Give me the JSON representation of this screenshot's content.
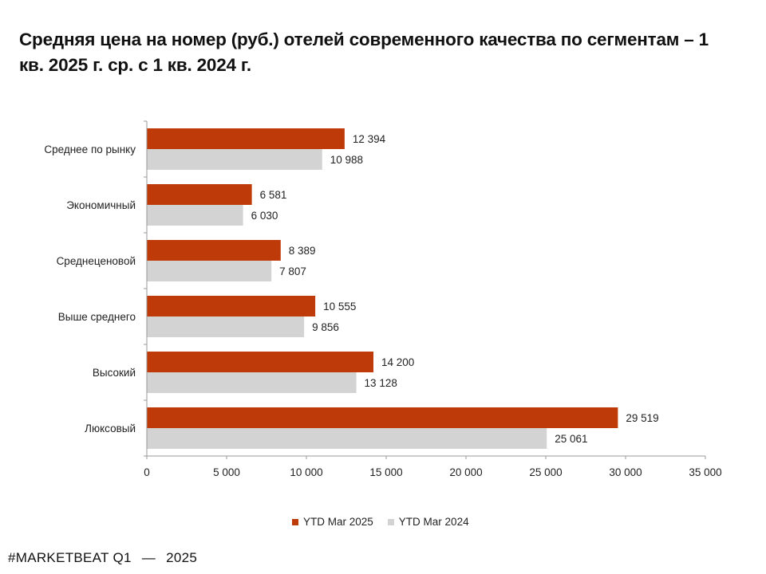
{
  "chart_data": {
    "type": "bar",
    "orientation": "horizontal",
    "title": "Средняя цена на номер (руб.) отелей современного качества по сегментам – 1 кв. 2025 г. ср. с 1 кв. 2024 г.",
    "categories": [
      "Среднее по рынку",
      "Экономичный",
      "Среднеценовой",
      "Выше среднего",
      "Высокий",
      "Люксовый"
    ],
    "series": [
      {
        "name": "YTD Mar 2025",
        "color": "#BE3A08",
        "values": [
          12394,
          6581,
          8389,
          10555,
          14200,
          29519
        ],
        "labels": [
          "12 394",
          "6 581",
          "8 389",
          "10 555",
          "14 200",
          "29 519"
        ]
      },
      {
        "name": "YTD Mar 2024",
        "color": "#D3D3D4",
        "values": [
          10988,
          6030,
          7807,
          9856,
          13128,
          25061
        ],
        "labels": [
          "10 988",
          "6 030",
          "7 807",
          "9 856",
          "13 128",
          "25 061"
        ]
      }
    ],
    "xlim": [
      0,
      35000
    ],
    "xticks": [
      0,
      5000,
      10000,
      15000,
      20000,
      25000,
      30000,
      35000
    ],
    "xtick_labels": [
      "0",
      "5 000",
      "10 000",
      "15 000",
      "20 000",
      "25 000",
      "30 000",
      "35 000"
    ],
    "xlabel": "",
    "ylabel": "",
    "grid": false,
    "legend_position": "bottom"
  },
  "footer": {
    "brand": "#MARKETBEAT Q1",
    "dash": "—",
    "year": "2025"
  }
}
